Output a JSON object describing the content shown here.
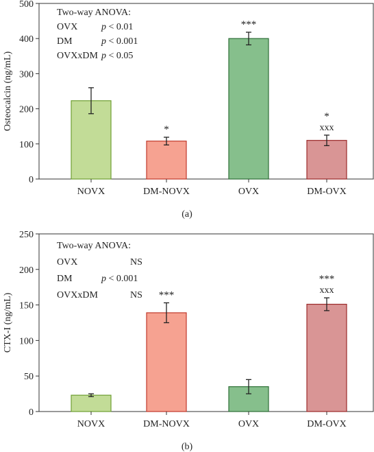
{
  "chart_data": [
    {
      "type": "bar",
      "panel_label": "(a)",
      "ylabel": "Osteocalcin (ng/mL)",
      "ylim": [
        0,
        500
      ],
      "yticks": [
        0,
        100,
        200,
        300,
        400,
        500
      ],
      "categories": [
        "NOVX",
        "DM-NOVX",
        "OVX",
        "DM-OVX"
      ],
      "values": [
        223,
        108,
        400,
        110
      ],
      "errors": [
        37,
        11,
        18,
        15
      ],
      "significance": [
        {
          "category": "DM-NOVX",
          "lines": [
            "*"
          ]
        },
        {
          "category": "OVX",
          "lines": [
            "***"
          ]
        },
        {
          "category": "DM-OVX",
          "lines": [
            "*",
            "xxx"
          ]
        }
      ],
      "annotation": {
        "title": "Two-way ANOVA:",
        "rows": [
          {
            "factor": "OVX",
            "p": "p",
            "rest": " < 0.01"
          },
          {
            "factor": "DM",
            "p": "p",
            "rest": " < 0.001"
          },
          {
            "factor": "OVXxDM",
            "p": "p",
            "rest": " < 0.05"
          }
        ]
      },
      "colors": [
        {
          "fill": "#c2dc97",
          "stroke": "#6e9e32"
        },
        {
          "fill": "#f6a291",
          "stroke": "#c0392b"
        },
        {
          "fill": "#86bf8c",
          "stroke": "#2e6e37"
        },
        {
          "fill": "#d99595",
          "stroke": "#9b2a2a"
        }
      ]
    },
    {
      "type": "bar",
      "panel_label": "(b)",
      "ylabel": "CTX-I (ng/mL)",
      "ylim": [
        0,
        250
      ],
      "yticks": [
        0,
        50,
        100,
        150,
        200,
        250
      ],
      "categories": [
        "NOVX",
        "DM-NOVX",
        "OVX",
        "DM-OVX"
      ],
      "values": [
        23,
        139,
        35,
        151
      ],
      "errors": [
        2,
        14,
        10,
        9
      ],
      "significance": [
        {
          "category": "DM-NOVX",
          "lines": [
            "***"
          ]
        },
        {
          "category": "DM-OVX",
          "lines": [
            "***",
            "xxx"
          ]
        }
      ],
      "annotation": {
        "title": "Two-way ANOVA:",
        "rows": [
          {
            "factor": "OVX",
            "p": "",
            "rest": "NS"
          },
          {
            "factor": "DM",
            "p": "p",
            "rest": " < 0.001"
          },
          {
            "factor": "OVXxDM",
            "p": "",
            "rest": "NS"
          }
        ]
      },
      "colors": [
        {
          "fill": "#c2dc97",
          "stroke": "#6e9e32"
        },
        {
          "fill": "#f6a291",
          "stroke": "#c0392b"
        },
        {
          "fill": "#86bf8c",
          "stroke": "#2e6e37"
        },
        {
          "fill": "#d99595",
          "stroke": "#9b2a2a"
        }
      ]
    }
  ]
}
